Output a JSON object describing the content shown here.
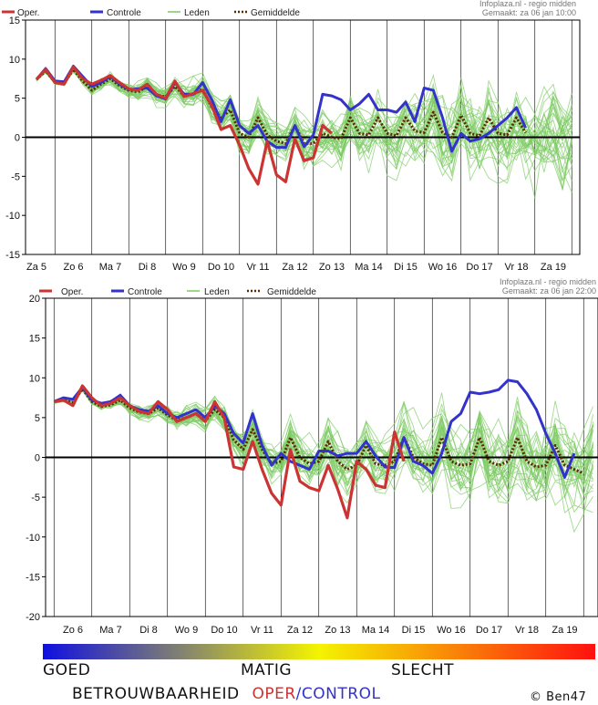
{
  "colors": {
    "oper": "#cc3333",
    "control": "#3333cc",
    "members": "#7ccb62",
    "mean": "#5a2a00",
    "grid": "#000000",
    "zero": "#000000",
    "good": "#1010e0",
    "fair": "#f4f400",
    "bad": "#ff1010"
  },
  "legend": {
    "oper": "Oper.",
    "control": "Controle",
    "members": "Leden",
    "mean": "Gemiddelde"
  },
  "reliability": {
    "good": "GOED",
    "fair": "MATIG",
    "bad": "SLECHT",
    "label": "BETROUWBAARHEID",
    "oper": "OPER",
    "slash": "/",
    "control": "CONTROL",
    "copyright": "© Ben47"
  },
  "chart_data": [
    {
      "type": "line",
      "source": "Infoplaza.nl - regio midden",
      "made": "Gemaakt: za 06 jan 10:00",
      "ylim": [
        -15,
        15
      ],
      "yticks": [
        -15,
        -10,
        -5,
        0,
        5,
        10,
        15
      ],
      "xlim": [
        0,
        15
      ],
      "days": [
        "Za 5",
        "Zo 6",
        "Ma 7",
        "Di 8",
        "Wo 9",
        "Do 10",
        "Vr 11",
        "Za 12",
        "Zo 13",
        "Ma 14",
        "Di 15",
        "Wo 16",
        "Do 17",
        "Vr 18",
        "Za 19"
      ],
      "grid": true,
      "series": [
        {
          "name": "Oper.",
          "role": "oper",
          "x": [
            0,
            0.25,
            0.5,
            0.75,
            1,
            1.25,
            1.5,
            1.75,
            2,
            2.25,
            2.5,
            2.75,
            3,
            3.25,
            3.5,
            3.75,
            4,
            4.25,
            4.5,
            4.75,
            5,
            5.25,
            5.5,
            5.75,
            6,
            6.25,
            6.5,
            6.75,
            7,
            7.25,
            7.5,
            7.75,
            8,
            8.25,
            8.5,
            8.75,
            9
          ],
          "y": [
            7.4,
            8.7,
            7.0,
            6.8,
            9.0,
            7.5,
            6.8,
            7.3,
            7.9,
            7.0,
            6.2,
            6.0,
            6.8,
            5.5,
            5.0,
            7.2,
            5.2,
            5.6,
            6.0,
            4.0,
            1.0,
            1.5,
            -1.0,
            -4.0,
            -6.0,
            -0.5,
            -4.8,
            -5.7,
            -0.2,
            -3.0,
            -2.6,
            1.5,
            0.5,
            null,
            null,
            null,
            null
          ]
        },
        {
          "name": "Controle",
          "role": "control",
          "x": [
            0,
            0.25,
            0.5,
            0.75,
            1,
            1.25,
            1.5,
            1.75,
            2,
            2.25,
            2.5,
            2.75,
            3,
            3.25,
            3.5,
            3.75,
            4,
            4.25,
            4.5,
            4.75,
            5,
            5.25,
            5.5,
            5.75,
            6,
            6.25,
            6.5,
            6.75,
            7,
            7.25,
            7.5,
            7.75,
            8,
            8.25,
            8.5,
            8.75,
            9,
            9.25,
            9.5,
            9.75,
            10,
            10.25,
            10.5,
            10.75,
            11,
            11.25,
            11.5,
            11.75,
            12,
            12.25,
            12.5,
            12.75,
            13,
            13.25,
            13.5,
            13.75,
            14,
            14.25,
            14.5,
            14.75,
            15
          ],
          "y": [
            7.4,
            8.8,
            7.2,
            7.1,
            9.1,
            7.8,
            6.5,
            7.0,
            7.8,
            6.8,
            6.1,
            6.2,
            6.3,
            5.3,
            4.9,
            7.0,
            5.5,
            5.5,
            7.0,
            4.8,
            2.0,
            4.8,
            1.5,
            0.5,
            1.5,
            -0.5,
            -1.3,
            -1.3,
            1.5,
            -1.2,
            0.3,
            5.5,
            5.3,
            4.8,
            3.5,
            4.3,
            5.5,
            3.5,
            3.5,
            3.2,
            4.5,
            2.0,
            6.3,
            6.0,
            2.5,
            -1.8,
            0.5,
            -0.5,
            -0.2,
            0.5,
            1.5,
            2.5,
            3.8,
            1.2,
            null,
            null,
            null,
            null,
            null,
            null,
            null
          ]
        },
        {
          "name": "Gemiddelde",
          "role": "mean",
          "x": [
            0,
            0.25,
            0.5,
            0.75,
            1,
            1.25,
            1.5,
            1.75,
            2,
            2.25,
            2.5,
            2.75,
            3,
            3.25,
            3.5,
            3.75,
            4,
            4.25,
            4.5,
            4.75,
            5,
            5.25,
            5.5,
            5.75,
            6,
            6.25,
            6.5,
            6.75,
            7,
            7.25,
            7.5,
            7.75,
            8,
            8.25,
            8.5,
            8.75,
            9,
            9.25,
            9.5,
            9.75,
            10,
            10.25,
            10.5,
            10.75,
            11,
            11.25,
            11.5,
            11.75,
            12,
            12.25,
            12.5,
            12.75,
            13,
            13.25,
            13.5,
            13.75,
            14,
            14.25
          ],
          "y": [
            7.4,
            8.5,
            7.0,
            6.9,
            8.7,
            7.2,
            6.0,
            6.8,
            7.5,
            6.6,
            6.0,
            5.8,
            6.5,
            5.4,
            5.2,
            6.5,
            5.3,
            5.5,
            6.2,
            3.8,
            2.5,
            3.5,
            0.5,
            0.0,
            2.5,
            0.3,
            -0.5,
            -0.8,
            1.5,
            -0.8,
            -0.8,
            0.5,
            0.0,
            -0.2,
            2.5,
            0.5,
            0.3,
            2.5,
            0.5,
            0.2,
            2.5,
            0.8,
            0.6,
            3.2,
            0.6,
            0.0,
            2.8,
            0.5,
            0.2,
            2.5,
            0.5,
            0.3,
            2.5,
            0.6,
            null,
            null,
            null,
            null
          ]
        }
      ]
    },
    {
      "type": "line",
      "source": "Infoplaza.nl - regio midden",
      "made": "Gemaakt: za 06 jan 22:00",
      "ylim": [
        -20,
        20
      ],
      "yticks": [
        -20,
        -15,
        -10,
        -5,
        0,
        5,
        10,
        15,
        20
      ],
      "xlim": [
        0,
        14
      ],
      "days": [
        "Zo 6",
        "Ma 7",
        "Di 8",
        "Wo 9",
        "Do 10",
        "Vr 11",
        "Za 12",
        "Zo 13",
        "Ma 14",
        "Di 15",
        "Wo 16",
        "Do 17",
        "Vr 18",
        "Za 19"
      ],
      "grid": true,
      "series": [
        {
          "name": "Oper.",
          "role": "oper",
          "x": [
            -0.5,
            -0.25,
            0,
            0.25,
            0.5,
            0.75,
            1,
            1.25,
            1.5,
            1.75,
            2,
            2.25,
            2.5,
            2.75,
            3,
            3.25,
            3.5,
            3.75,
            4,
            4.25,
            4.5,
            4.75,
            5,
            5.25,
            5.5,
            5.75,
            6,
            6.25,
            6.5,
            6.75,
            7,
            7.25,
            7.5,
            7.75,
            8,
            8.25,
            8.5,
            8.75,
            9
          ],
          "y": [
            7.0,
            7.2,
            6.5,
            9.0,
            7.5,
            6.5,
            6.8,
            7.5,
            6.5,
            5.8,
            5.5,
            7.0,
            6.0,
            4.5,
            5.0,
            5.5,
            4.5,
            7.0,
            5.0,
            -1.2,
            -1.5,
            2.0,
            -1.5,
            -4.5,
            -6.0,
            1.0,
            -3.0,
            -3.8,
            -4.2,
            -1.0,
            -4.0,
            -7.6,
            -0.5,
            -1.5,
            -3.5,
            -3.8,
            3.2,
            -0.5,
            null
          ]
        },
        {
          "name": "Controle",
          "role": "control",
          "x": [
            -0.5,
            -0.25,
            0,
            0.25,
            0.5,
            0.75,
            1,
            1.25,
            1.5,
            1.75,
            2,
            2.25,
            2.5,
            2.75,
            3,
            3.25,
            3.5,
            3.75,
            4,
            4.25,
            4.5,
            4.75,
            5,
            5.25,
            5.5,
            5.75,
            6,
            6.25,
            6.5,
            6.75,
            7,
            7.25,
            7.5,
            7.75,
            8,
            8.25,
            8.5,
            8.75,
            9,
            9.25,
            9.5,
            9.75,
            10,
            10.25,
            10.5,
            10.75,
            11,
            11.25,
            11.5,
            11.75,
            12,
            12.25,
            12.5,
            12.75,
            13,
            13.25,
            13.5,
            13.75
          ],
          "y": [
            7.0,
            7.5,
            7.3,
            8.8,
            7.2,
            6.8,
            7.0,
            7.8,
            6.5,
            6.0,
            5.8,
            6.5,
            5.5,
            5.0,
            5.5,
            6.0,
            5.0,
            6.5,
            5.5,
            3.0,
            1.8,
            5.5,
            1.5,
            -1.0,
            0.5,
            -0.5,
            -1.0,
            -1.5,
            0.8,
            0.8,
            0.2,
            0.5,
            0.5,
            2.0,
            0.2,
            -1.2,
            -1.3,
            2.5,
            -0.5,
            -1.0,
            -2.0,
            0.5,
            4.5,
            5.5,
            8.2,
            8.0,
            8.2,
            8.5,
            9.7,
            9.5,
            8.0,
            6.0,
            3.0,
            0.5,
            -2.5,
            0.5,
            null,
            null
          ]
        },
        {
          "name": "Gemiddelde",
          "role": "mean",
          "x": [
            -0.5,
            -0.25,
            0,
            0.25,
            0.5,
            0.75,
            1,
            1.25,
            1.5,
            1.75,
            2,
            2.25,
            2.5,
            2.75,
            3,
            3.25,
            3.5,
            3.75,
            4,
            4.25,
            4.5,
            4.75,
            5,
            5.25,
            5.5,
            5.75,
            6,
            6.25,
            6.5,
            6.75,
            7,
            7.25,
            7.5,
            7.75,
            8,
            8.25,
            8.5,
            8.75,
            9,
            9.25,
            9.5,
            9.75,
            10,
            10.25,
            10.5,
            10.75,
            11,
            11.25,
            11.5,
            11.75,
            12,
            12.25,
            12.5,
            12.75,
            13,
            13.25,
            13.5
          ],
          "y": [
            7.0,
            7.2,
            6.9,
            8.6,
            7.0,
            6.4,
            6.6,
            7.2,
            6.2,
            5.7,
            5.5,
            6.2,
            5.3,
            4.7,
            5.0,
            5.5,
            4.6,
            6.0,
            5.0,
            2.2,
            1.0,
            3.5,
            1.0,
            -0.8,
            -0.5,
            2.5,
            0.0,
            -0.8,
            -0.5,
            2.0,
            -0.5,
            -1.5,
            -1.0,
            1.5,
            -0.8,
            -1.0,
            -0.5,
            2.5,
            0.0,
            -0.8,
            -1.0,
            2.5,
            -0.5,
            -1.0,
            -0.8,
            2.5,
            -0.5,
            -1.0,
            -0.5,
            2.5,
            -0.5,
            -1.2,
            -1.0,
            1.5,
            -1.0,
            -1.5,
            -2.0
          ]
        }
      ]
    }
  ]
}
